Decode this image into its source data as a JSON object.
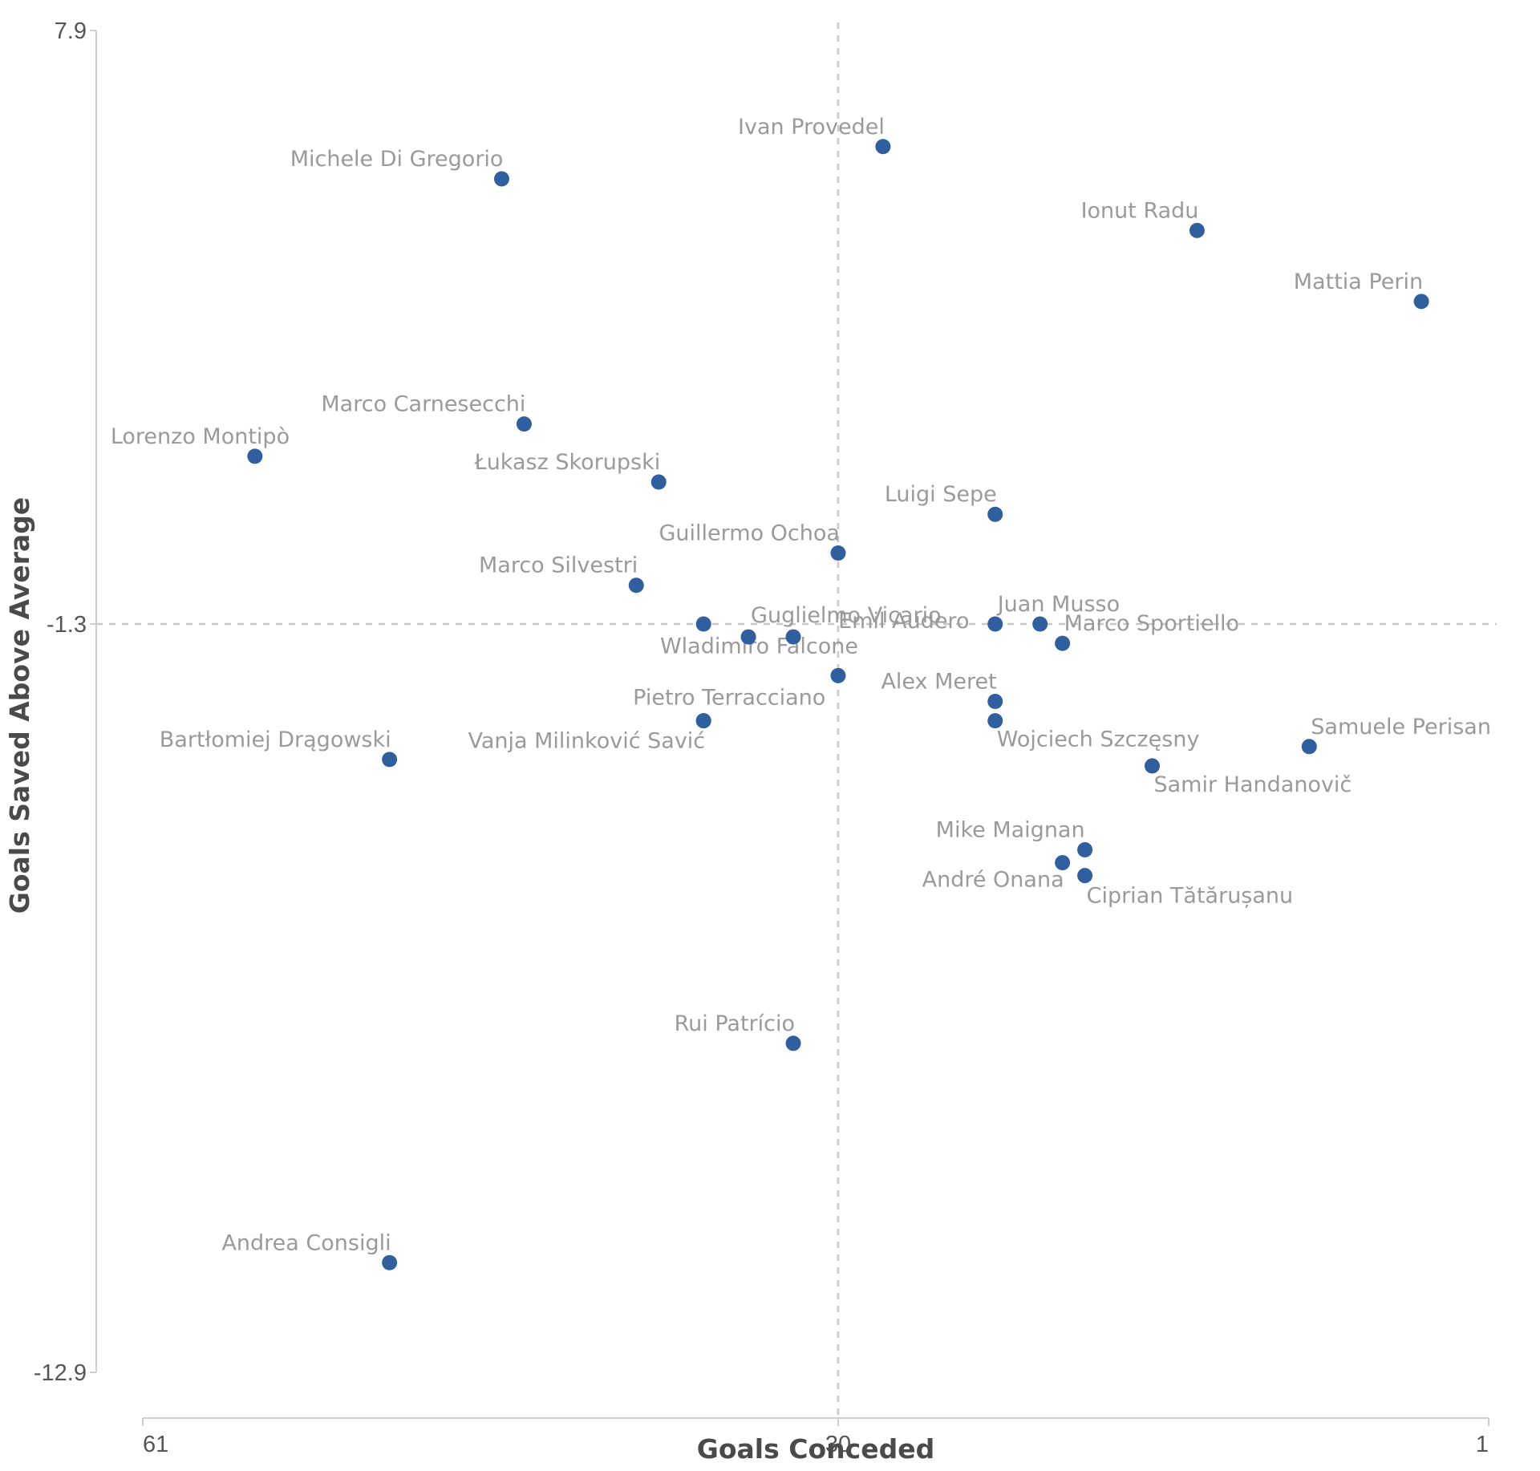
{
  "chart_data": {
    "type": "scatter",
    "title": "",
    "xlabel": "Goals Conceded",
    "ylabel": "Goals Saved Above Average",
    "xlim": [
      61,
      1
    ],
    "ylim": [
      -12.9,
      7.9
    ],
    "x_reversed": true,
    "x_ticks": [
      "61",
      "30",
      "1"
    ],
    "y_ticks": [
      "7.9",
      "-1.3",
      "-12.9"
    ],
    "reference_lines": {
      "x": 30,
      "y": -1.3
    },
    "point_color": "#2f5f9e",
    "grid": false,
    "legend": "none",
    "points": [
      {
        "name": "Ivan Provedel",
        "x": 28,
        "y": 6.1
      },
      {
        "name": "Michele Di Gregorio",
        "x": 45,
        "y": 5.6
      },
      {
        "name": "Ionut Radu",
        "x": 14,
        "y": 4.8
      },
      {
        "name": "Mattia Perin",
        "x": 4,
        "y": 3.7
      },
      {
        "name": "Marco Carnesecchi",
        "x": 44,
        "y": 1.8
      },
      {
        "name": "Lorenzo Montipò",
        "x": 56,
        "y": 1.3
      },
      {
        "name": "Łukasz Skorupski",
        "x": 38,
        "y": 0.9
      },
      {
        "name": "Luigi Sepe",
        "x": 23,
        "y": 0.4
      },
      {
        "name": "Guillermo Ochoa",
        "x": 30,
        "y": -0.2
      },
      {
        "name": "Marco Silvestri",
        "x": 39,
        "y": -0.7
      },
      {
        "name": "Guglielmo Vicario",
        "x": 32,
        "y": -1.5
      },
      {
        "name": "",
        "x": 34,
        "y": -1.5
      },
      {
        "name": "Emil Audero",
        "x": 36,
        "y": -1.3
      },
      {
        "name": "Juan Musso",
        "x": 23,
        "y": -1.3
      },
      {
        "name": "",
        "x": 21,
        "y": -1.3
      },
      {
        "name": "Marco Sportiello",
        "x": 20,
        "y": -1.6
      },
      {
        "name": "Wladimiro Falcone",
        "x": 30,
        "y": -2.1
      },
      {
        "name": "Alex Meret",
        "x": 23,
        "y": -2.5
      },
      {
        "name": "Wojciech Szczęsny",
        "x": 23,
        "y": -2.8
      },
      {
        "name": "Pietro Terracciano",
        "x": 36,
        "y": -2.8
      },
      {
        "name": "Samuele Perisan",
        "x": 9,
        "y": -3.2
      },
      {
        "name": "Bartłomiej Drągowski",
        "x": 50,
        "y": -3.4
      },
      {
        "name": "Vanja Milinković Savić",
        "x": 36,
        "y": -2.8
      },
      {
        "name": "Samir Handanovič",
        "x": 16,
        "y": -3.5
      },
      {
        "name": "Mike Maignan",
        "x": 19,
        "y": -4.8
      },
      {
        "name": "André Onana",
        "x": 20,
        "y": -5.0
      },
      {
        "name": "Ciprian Tătărușanu",
        "x": 19,
        "y": -5.2
      },
      {
        "name": "Rui Patrício",
        "x": 32,
        "y": -7.8
      },
      {
        "name": "Andrea Consigli",
        "x": 50,
        "y": -11.2
      }
    ]
  }
}
